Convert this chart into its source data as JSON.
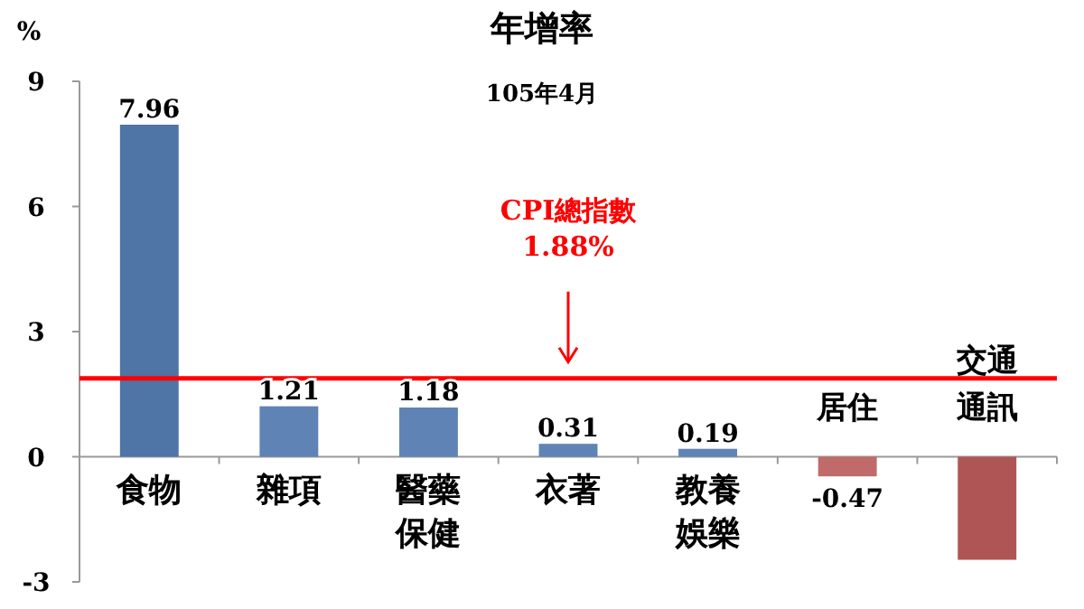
{
  "chart_data": {
    "type": "bar",
    "title": "年增率",
    "subtitle": "105年4月",
    "ylabel": "%",
    "categories": [
      "食物",
      "雜項",
      "醫藥保健",
      "衣著",
      "教養娛樂",
      "居住",
      "交通通訊"
    ],
    "values": [
      7.96,
      1.21,
      1.18,
      0.31,
      0.19,
      -0.47,
      -2.47
    ],
    "colors": [
      "#4f74a6",
      "#5f83b5",
      "#5f83b5",
      "#5f83b5",
      "#5f83b5",
      "#c06a6a",
      "#b05555"
    ],
    "value_labels": [
      "7.96",
      "1.21",
      "1.18",
      "0.31",
      "0.19",
      "-0.47",
      null
    ],
    "ylim": [
      -3,
      9
    ],
    "yticks": [
      -3,
      0,
      3,
      6,
      9
    ],
    "ref_lines": [
      {
        "axis": "y",
        "value": 1.88,
        "label": "CPI總指數 1.88%",
        "color": "#ff0000"
      }
    ],
    "grid": false
  }
}
